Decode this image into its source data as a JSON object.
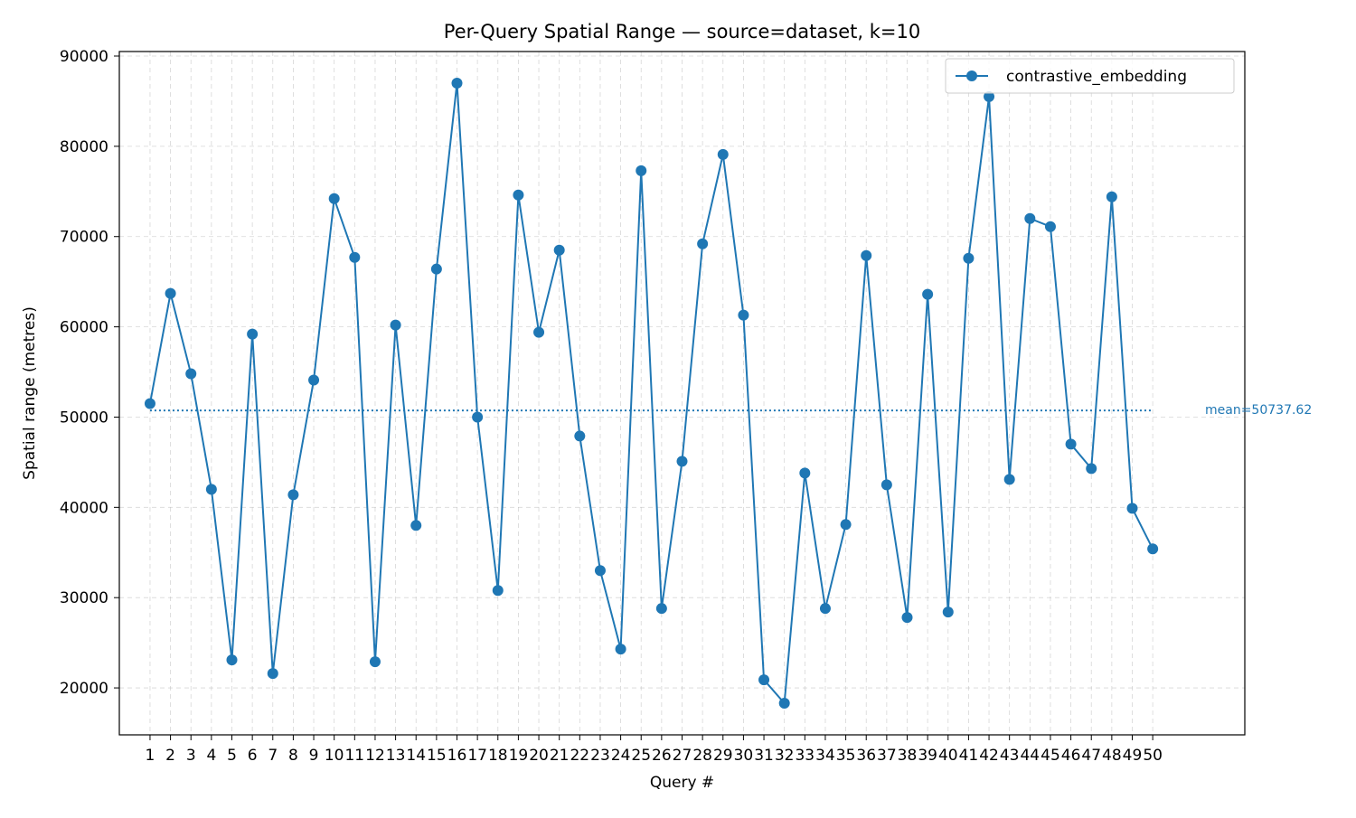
{
  "chart_data": {
    "type": "line",
    "title": "Per-Query Spatial Range — source=dataset, k=10",
    "xlabel": "Query #",
    "ylabel": "Spatial range (metres)",
    "ylim": [
      14800,
      90500
    ],
    "xlim": [
      -1.5,
      53.5
    ],
    "grid": true,
    "legend_position": "top-right",
    "yticks": [
      20000,
      30000,
      40000,
      50000,
      60000,
      70000,
      80000,
      90000
    ],
    "categories": [
      "1",
      "2",
      "3",
      "4",
      "5",
      "6",
      "7",
      "8",
      "9",
      "10",
      "11",
      "12",
      "13",
      "14",
      "15",
      "16",
      "17",
      "18",
      "19",
      "20",
      "21",
      "22",
      "23",
      "24",
      "25",
      "26",
      "27",
      "28",
      "29",
      "30",
      "31",
      "32",
      "33",
      "34",
      "35",
      "36",
      "37",
      "38",
      "39",
      "40",
      "41",
      "42",
      "43",
      "44",
      "45",
      "46",
      "47",
      "48",
      "49",
      "50"
    ],
    "series": [
      {
        "name": "contrastive_embedding",
        "color": "#1f77b4",
        "marker": "circle",
        "values": [
          51500,
          63700,
          54800,
          42000,
          23100,
          59200,
          21600,
          41400,
          54100,
          74200,
          67700,
          22900,
          60200,
          38000,
          66400,
          87000,
          50000,
          30800,
          74600,
          59400,
          68500,
          47900,
          33000,
          24300,
          77300,
          28800,
          45100,
          69200,
          79100,
          61300,
          20900,
          18300,
          43800,
          28800,
          38100,
          67900,
          42500,
          27800,
          63600,
          28400,
          67600,
          85500,
          43100,
          72000,
          71100,
          47000,
          44300,
          74400,
          39900,
          35400
        ]
      }
    ],
    "mean": {
      "value": 50737.62,
      "label": "mean=50737.62",
      "color": "#1f77b4"
    }
  }
}
